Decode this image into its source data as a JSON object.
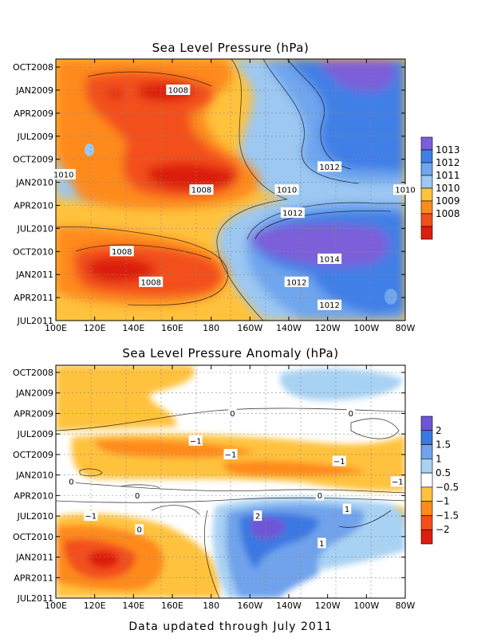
{
  "footer": "Data updated through July 2011",
  "chart_data": [
    {
      "type": "heatmap",
      "title": "Sea Level Pressure (hPa)",
      "x_tick_labels": [
        "100E",
        "120E",
        "140E",
        "160E",
        "180",
        "160W",
        "140W",
        "120W",
        "100W",
        "80W"
      ],
      "y_tick_labels": [
        "OCT2008",
        "JAN2009",
        "APR2009",
        "JUL2009",
        "OCT2009",
        "JAN2010",
        "APR2010",
        "JUL2010",
        "OCT2010",
        "JAN2011",
        "APR2011",
        "JUL2011"
      ],
      "colorbar": {
        "labels": [
          "1013",
          "1012",
          "1011",
          "1010",
          "1009",
          "1008"
        ],
        "colors": [
          "#7b5fd9",
          "#3f7fe6",
          "#6fa6ee",
          "#9cc8f2",
          "#ffc23d",
          "#ff8a1f",
          "#f2501a",
          "#dc1e0e"
        ]
      },
      "contour_labels": [
        {
          "text": "1008",
          "lon": 163,
          "month": 3
        },
        {
          "text": "1010",
          "lon": 104,
          "month": 14
        },
        {
          "text": "1008",
          "lon": 175,
          "month": 16
        },
        {
          "text": "1012",
          "lon": 241,
          "month": 13
        },
        {
          "text": "1010",
          "lon": 219,
          "month": 16
        },
        {
          "text": "1010",
          "lon": 280,
          "month": 16
        },
        {
          "text": "1012",
          "lon": 222,
          "month": 19
        },
        {
          "text": "1008",
          "lon": 134,
          "month": 24
        },
        {
          "text": "1014",
          "lon": 241,
          "month": 25
        },
        {
          "text": "1008",
          "lon": 149,
          "month": 28
        },
        {
          "text": "1012",
          "lon": 224,
          "month": 28
        },
        {
          "text": "1012",
          "lon": 241,
          "month": 31
        }
      ]
    },
    {
      "type": "heatmap",
      "title": "Sea Level Pressure Anomaly (hPa)",
      "x_tick_labels": [
        "100E",
        "120E",
        "140E",
        "160E",
        "180",
        "160W",
        "140W",
        "120W",
        "100W",
        "80W"
      ],
      "y_tick_labels": [
        "OCT2008",
        "JAN2009",
        "APR2009",
        "JUL2009",
        "OCT2009",
        "JAN2010",
        "APR2010",
        "JUL2010",
        "OCT2010",
        "JAN2011",
        "APR2011",
        "JUL2011"
      ],
      "colorbar": {
        "labels": [
          "2",
          "1.5",
          "1",
          "0.5",
          "−0.5",
          "−1",
          "−1.5",
          "−2"
        ],
        "colors": [
          "#6f55d6",
          "#3a78e3",
          "#6fa3ec",
          "#a8d2f3",
          "#ffffff",
          "#ffc23d",
          "#ff8a1f",
          "#f2501a",
          "#dc1e0e"
        ]
      },
      "contour_labels": [
        {
          "text": "0",
          "lon": 191,
          "month": 6
        },
        {
          "text": "0",
          "lon": 252,
          "month": 6
        },
        {
          "text": "−1",
          "lon": 172,
          "month": 10
        },
        {
          "text": "−1",
          "lon": 190,
          "month": 12
        },
        {
          "text": "−1",
          "lon": 246,
          "month": 13
        },
        {
          "text": "0",
          "lon": 108,
          "month": 16
        },
        {
          "text": "−1",
          "lon": 276,
          "month": 16
        },
        {
          "text": "0",
          "lon": 142,
          "month": 18
        },
        {
          "text": "0",
          "lon": 236,
          "month": 18
        },
        {
          "text": "1",
          "lon": 250,
          "month": 20
        },
        {
          "text": "−1",
          "lon": 118,
          "month": 21
        },
        {
          "text": "2",
          "lon": 204,
          "month": 21
        },
        {
          "text": "0",
          "lon": 143,
          "month": 23
        },
        {
          "text": "1",
          "lon": 237,
          "month": 25
        }
      ]
    }
  ]
}
